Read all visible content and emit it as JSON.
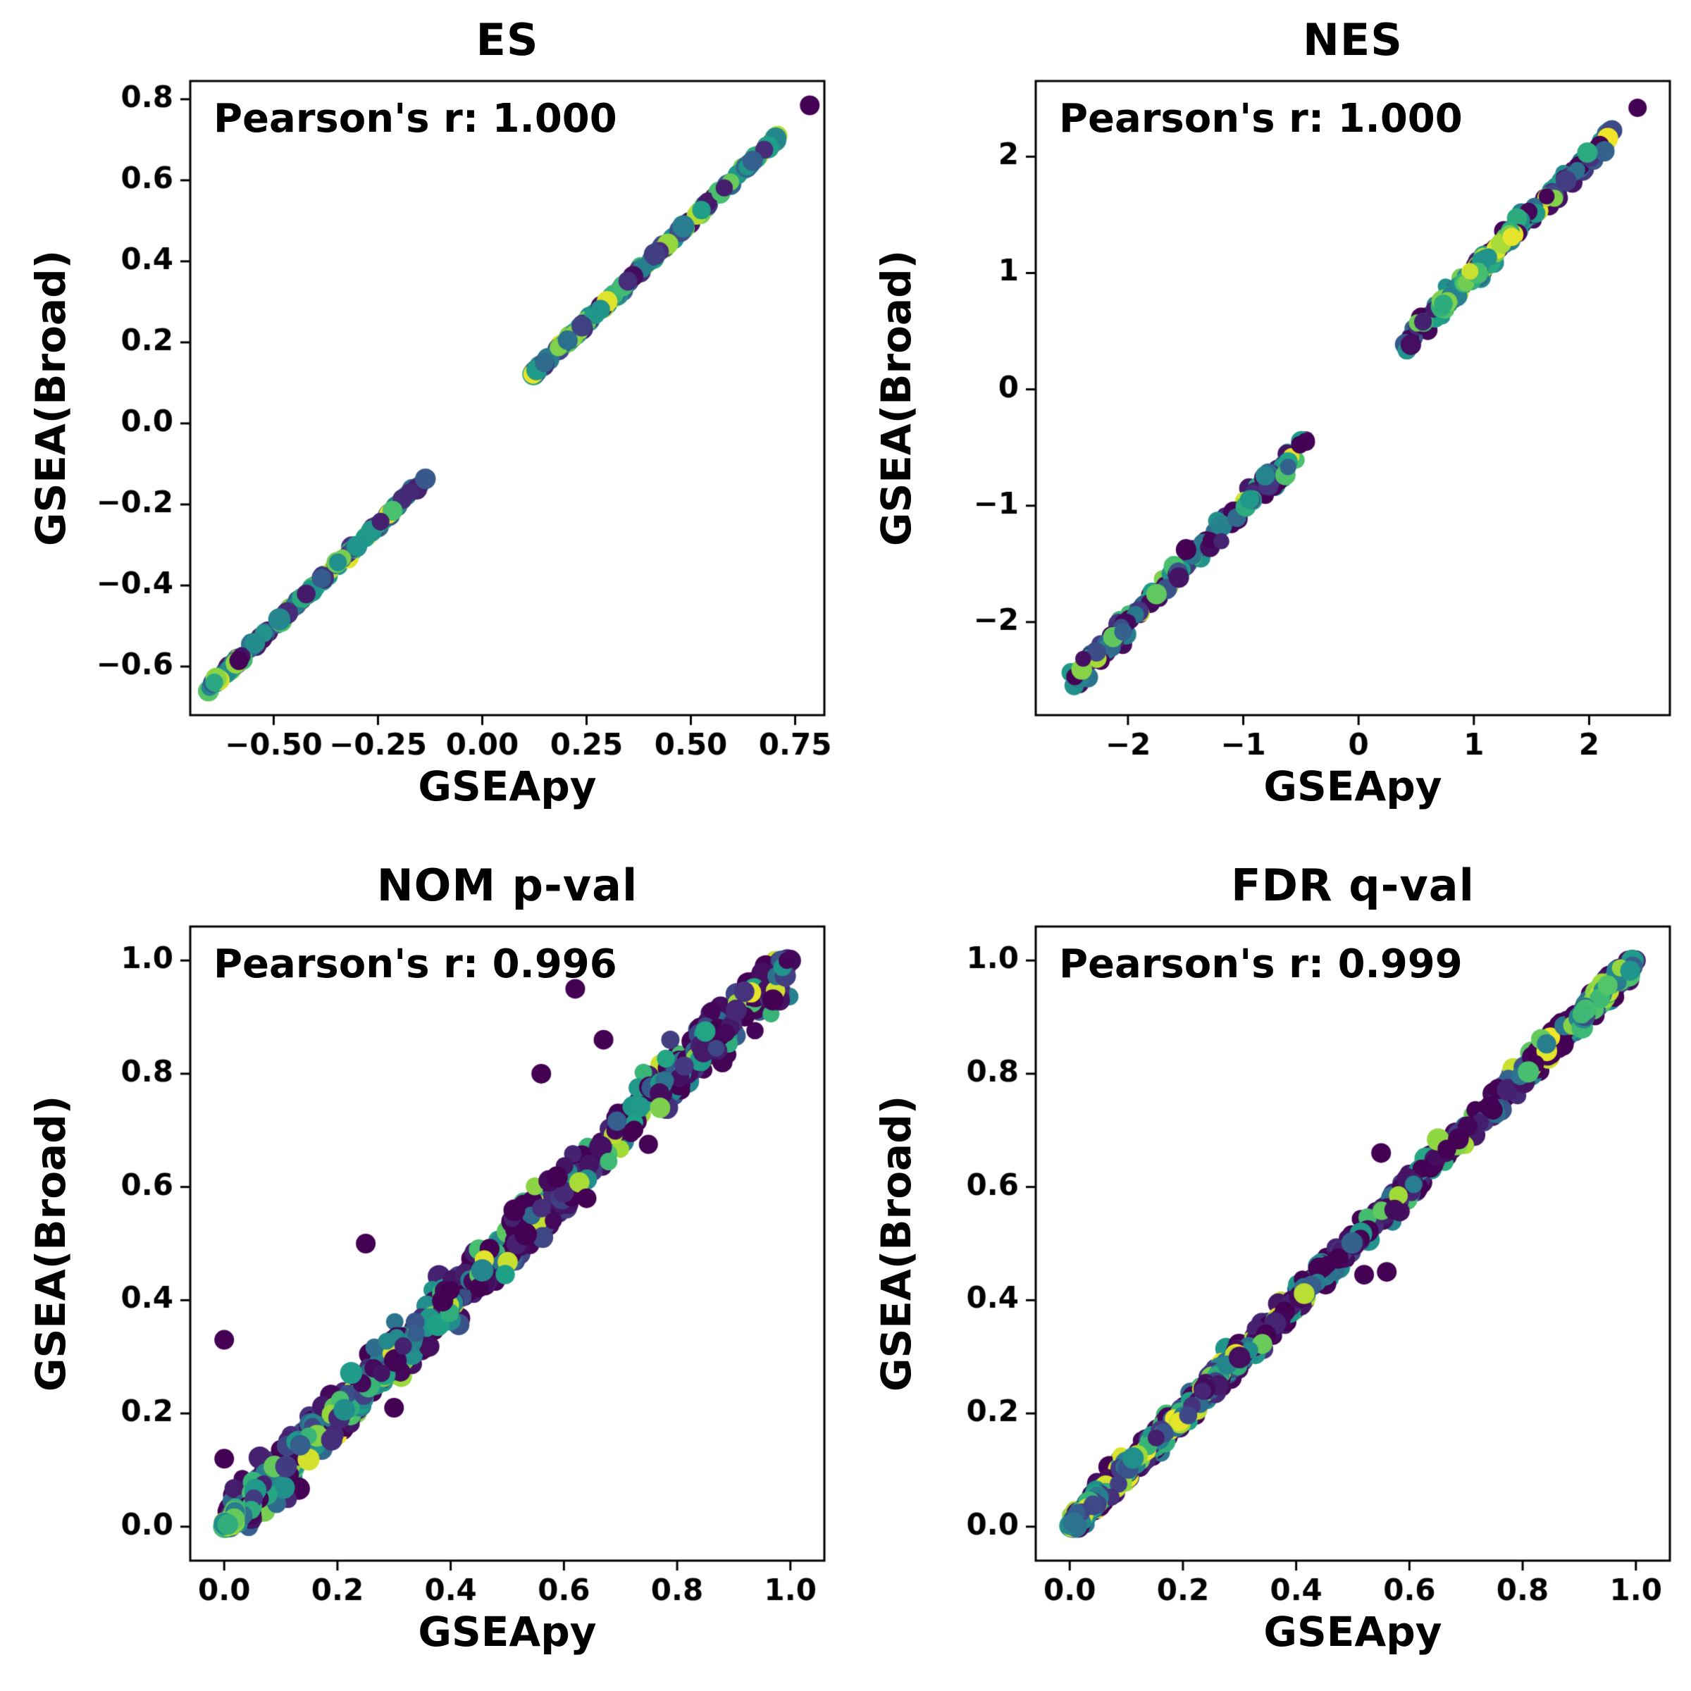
{
  "background": "#ffffff",
  "colormap": {
    "name": "viridis",
    "positions": [
      0.0,
      0.13,
      0.25,
      0.38,
      0.5,
      0.62,
      0.75,
      0.88,
      1.0
    ],
    "colors": [
      "#440154",
      "#46327e",
      "#365c8d",
      "#277f8e",
      "#21918c",
      "#1fa187",
      "#4ac16d",
      "#a0da39",
      "#fde725"
    ]
  },
  "chart_data": [
    {
      "type": "scatter",
      "title": "ES",
      "annotation": "Pearson's r: 1.000",
      "xlabel": "GSEApy",
      "ylabel": "GSEA(Broad)",
      "xlim": [
        -0.7,
        0.82
      ],
      "ylim": [
        -0.72,
        0.845
      ],
      "xticks": {
        "values": [
          -0.5,
          -0.25,
          0.0,
          0.25,
          0.5,
          0.75
        ],
        "labels": [
          "−0.50",
          "−0.25",
          "0.00",
          "0.25",
          "0.50",
          "0.75"
        ]
      },
      "yticks": {
        "values": [
          -0.6,
          -0.4,
          -0.2,
          0.0,
          0.2,
          0.4,
          0.6,
          0.8
        ],
        "labels": [
          "−0.6",
          "−0.4",
          "−0.2",
          "0.0",
          "0.2",
          "0.4",
          "0.6",
          "0.8"
        ]
      },
      "relationship": "y = x (identity line, two segments with gap around 0)",
      "seed": 11,
      "marker_radius": 14,
      "segments": [
        {
          "x_range": [
            -0.66,
            -0.12
          ],
          "n": 130,
          "noise": 0.003,
          "color_bias": 1.15
        },
        {
          "x_range": [
            0.12,
            0.71
          ],
          "n": 130,
          "noise": 0.003,
          "color_bias": 1.15
        }
      ],
      "outliers": [
        [
          0.785,
          0.785
        ]
      ]
    },
    {
      "type": "scatter",
      "title": "NES",
      "annotation": "Pearson's r: 1.000",
      "xlabel": "GSEApy",
      "ylabel": "GSEA(Broad)",
      "xlim": [
        -2.8,
        2.7
      ],
      "ylim": [
        -2.8,
        2.65
      ],
      "xticks": {
        "values": [
          -2,
          -1,
          0,
          1,
          2
        ],
        "labels": [
          "−2",
          "−1",
          "0",
          "1",
          "2"
        ]
      },
      "yticks": {
        "values": [
          -2,
          -1,
          0,
          1,
          2
        ],
        "labels": [
          "−2",
          "−1",
          "0",
          "1",
          "2"
        ]
      },
      "relationship": "y ≈ x (identity line, two clusters with gap around 0)",
      "seed": 22,
      "marker_radius": 13,
      "segments": [
        {
          "x_range": [
            -2.5,
            -0.45
          ],
          "n": 170,
          "noise": 0.05,
          "color_bias": 2.6
        },
        {
          "x_range": [
            0.4,
            2.2
          ],
          "n": 170,
          "noise": 0.04,
          "color_bias": 2.2
        },
        {
          "x_range": [
            0.7,
            1.35
          ],
          "n": 70,
          "noise": 0.035,
          "color_bias": 0.5
        }
      ],
      "outliers": [
        [
          2.42,
          2.42
        ]
      ]
    },
    {
      "type": "scatter",
      "title": "NOM p-val",
      "annotation": "Pearson's r: 0.996",
      "xlabel": "GSEApy",
      "ylabel": "GSEA(Broad)",
      "xlim": [
        -0.06,
        1.06
      ],
      "ylim": [
        -0.06,
        1.06
      ],
      "xticks": {
        "values": [
          0.0,
          0.2,
          0.4,
          0.6,
          0.8,
          1.0
        ],
        "labels": [
          "0.0",
          "0.2",
          "0.4",
          "0.6",
          "0.8",
          "1.0"
        ]
      },
      "yticks": {
        "values": [
          0.0,
          0.2,
          0.4,
          0.6,
          0.8,
          1.0
        ],
        "labels": [
          "0.0",
          "0.2",
          "0.4",
          "0.6",
          "0.8",
          "1.0"
        ]
      },
      "relationship": "y ≈ x (dense noisy diagonal band from 0 to 1)",
      "seed": 33,
      "marker_radius": 14,
      "value_clip": [
        0,
        1
      ],
      "segments": [
        {
          "x_range": [
            0.0,
            1.0
          ],
          "n": 620,
          "noise": 0.024,
          "color_bias": 3.5
        },
        {
          "x_range": [
            0.0,
            0.4
          ],
          "n": 130,
          "noise": 0.02,
          "color_bias": 1.6
        },
        {
          "x_range": [
            0.0,
            0.02
          ],
          "n": 60,
          "noise": 0.005,
          "color_bias": 0.55
        }
      ],
      "outliers": [
        [
          0.0,
          0.33
        ],
        [
          0.0,
          0.12
        ],
        [
          0.25,
          0.5
        ],
        [
          0.62,
          0.95
        ],
        [
          0.64,
          0.58
        ],
        [
          0.56,
          0.8
        ],
        [
          0.3,
          0.21
        ],
        [
          0.67,
          0.86
        ]
      ]
    },
    {
      "type": "scatter",
      "title": "FDR q-val",
      "annotation": "Pearson's r: 0.999",
      "xlabel": "GSEApy",
      "ylabel": "GSEA(Broad)",
      "xlim": [
        -0.06,
        1.06
      ],
      "ylim": [
        -0.06,
        1.06
      ],
      "xticks": {
        "values": [
          0.0,
          0.2,
          0.4,
          0.6,
          0.8,
          1.0
        ],
        "labels": [
          "0.0",
          "0.2",
          "0.4",
          "0.6",
          "0.8",
          "1.0"
        ]
      },
      "yticks": {
        "values": [
          0.0,
          0.2,
          0.4,
          0.6,
          0.8,
          1.0
        ],
        "labels": [
          "0.0",
          "0.2",
          "0.4",
          "0.6",
          "0.8",
          "1.0"
        ]
      },
      "relationship": "y ≈ x (tight diagonal band from 0 to 1)",
      "seed": 44,
      "marker_radius": 14,
      "value_clip": [
        0,
        1
      ],
      "segments": [
        {
          "x_range": [
            0.0,
            1.0
          ],
          "n": 620,
          "noise": 0.013,
          "color_bias": 3.5
        },
        {
          "x_range": [
            0.0,
            0.3
          ],
          "n": 130,
          "noise": 0.01,
          "color_bias": 1.4
        },
        {
          "x_range": [
            0.0,
            0.05
          ],
          "n": 70,
          "noise": 0.006,
          "color_bias": 1.1
        },
        {
          "x_range": [
            0.9,
            1.0
          ],
          "n": 60,
          "noise": 0.008,
          "color_bias": 0.6
        }
      ],
      "outliers": [
        [
          0.55,
          0.66
        ],
        [
          0.52,
          0.445
        ],
        [
          0.56,
          0.45
        ]
      ]
    }
  ]
}
